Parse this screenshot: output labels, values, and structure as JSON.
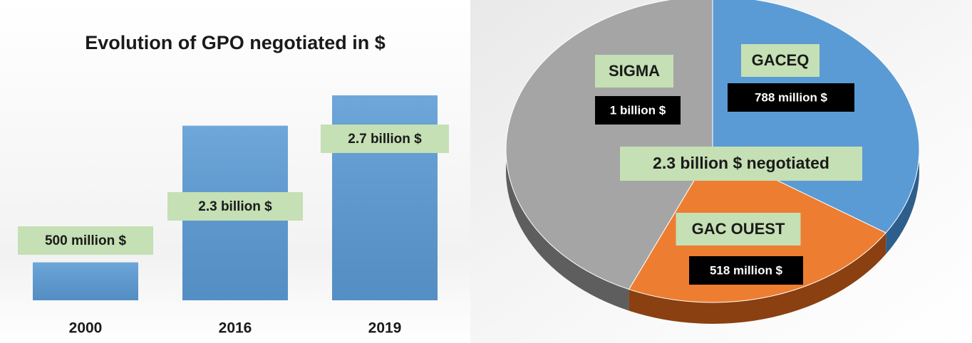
{
  "chart_data": [
    {
      "type": "bar",
      "title": "Evolution of GPO negotiated in $",
      "categories": [
        "2000",
        "2016",
        "2019"
      ],
      "values": [
        500000000,
        2300000000,
        2700000000
      ],
      "value_labels": [
        "500 million $",
        "2.3 billion $",
        "2.7 billion $"
      ],
      "color": "#5b9bd5"
    },
    {
      "type": "pie",
      "categories": [
        "GACEQ",
        "GAC OUEST",
        "SIGMA"
      ],
      "values": [
        788000000,
        518000000,
        1000000000
      ],
      "value_labels": [
        "788 million $",
        "518 million $",
        "1 billion $"
      ],
      "colors": [
        "#5b9bd5",
        "#ed7d31",
        "#a5a5a5"
      ],
      "annotation": "2.3 billion $ negotiated"
    }
  ]
}
